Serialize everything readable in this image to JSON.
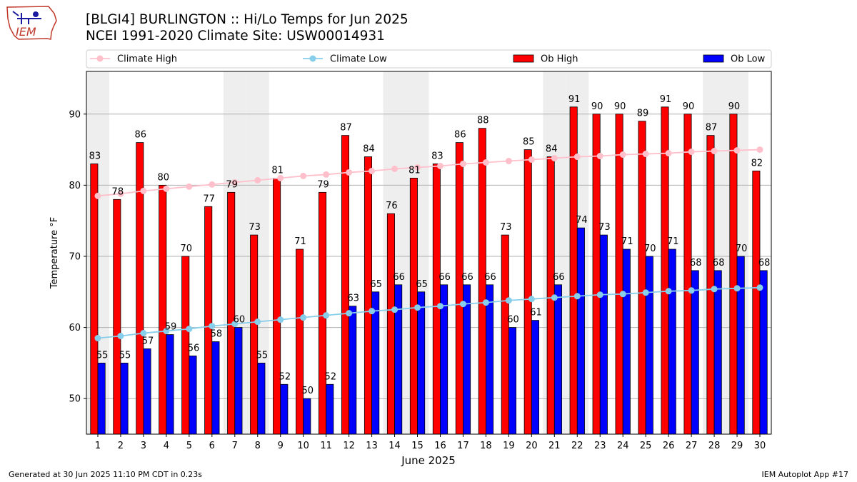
{
  "logo": {
    "text": "IEM",
    "icon": "iowa-state-outline-icon"
  },
  "title_line1": "[BLGI4] BURLINGTON :: Hi/Lo Temps for Jun 2025",
  "title_line2": "NCEI 1991-2020 Climate Site: USW00014931",
  "footer_left": "Generated at 30 Jun 2025 11:10 PM CDT in 0.23s",
  "footer_right": "IEM Autoplot App #17",
  "colors": {
    "ob_high": "#ff0000",
    "ob_low": "#0000ff",
    "climate_high": "#ffc0cb",
    "climate_low": "#87ceeb",
    "weekend_band": "#eeeeee",
    "grid": "#b0b0b0"
  },
  "chart_data": {
    "type": "bar",
    "xlabel": "June 2025",
    "ylabel": "Temperature °F",
    "ylim": [
      45,
      96
    ],
    "yticks": [
      50,
      60,
      70,
      80,
      90
    ],
    "grid": "horizontal",
    "legend_placement": "top",
    "categories": [
      "1",
      "2",
      "3",
      "4",
      "5",
      "6",
      "7",
      "8",
      "9",
      "10",
      "11",
      "12",
      "13",
      "14",
      "15",
      "16",
      "17",
      "18",
      "19",
      "20",
      "21",
      "22",
      "23",
      "24",
      "25",
      "26",
      "27",
      "28",
      "29",
      "30"
    ],
    "shaded_days": [
      1,
      7,
      8,
      14,
      15,
      21,
      22,
      28,
      29
    ],
    "series": [
      {
        "name": "Ob High",
        "kind": "bar",
        "values": [
          83,
          78,
          86,
          80,
          70,
          77,
          79,
          73,
          81,
          71,
          79,
          87,
          84,
          76,
          81,
          83,
          86,
          88,
          73,
          85,
          84,
          91,
          90,
          90,
          89,
          91,
          90,
          87,
          90,
          82
        ]
      },
      {
        "name": "Ob Low",
        "kind": "bar",
        "values": [
          55,
          55,
          57,
          59,
          56,
          58,
          60,
          55,
          52,
          50,
          52,
          63,
          65,
          66,
          65,
          66,
          66,
          66,
          60,
          61,
          66,
          74,
          73,
          71,
          70,
          71,
          68,
          68,
          70,
          68
        ]
      },
      {
        "name": "Climate High",
        "kind": "line",
        "values": [
          78.5,
          78.8,
          79.2,
          79.5,
          79.8,
          80.1,
          80.4,
          80.7,
          81.0,
          81.3,
          81.5,
          81.8,
          82.0,
          82.3,
          82.5,
          82.7,
          83.0,
          83.2,
          83.4,
          83.6,
          83.8,
          84.0,
          84.1,
          84.3,
          84.4,
          84.5,
          84.7,
          84.8,
          84.9,
          85.0
        ]
      },
      {
        "name": "Climate Low",
        "kind": "line",
        "values": [
          58.5,
          58.8,
          59.2,
          59.5,
          59.8,
          60.2,
          60.5,
          60.8,
          61.1,
          61.4,
          61.7,
          62.0,
          62.3,
          62.5,
          62.8,
          63.0,
          63.3,
          63.5,
          63.8,
          64.0,
          64.2,
          64.4,
          64.6,
          64.7,
          64.9,
          65.1,
          65.2,
          65.4,
          65.5,
          65.6
        ]
      }
    ]
  }
}
